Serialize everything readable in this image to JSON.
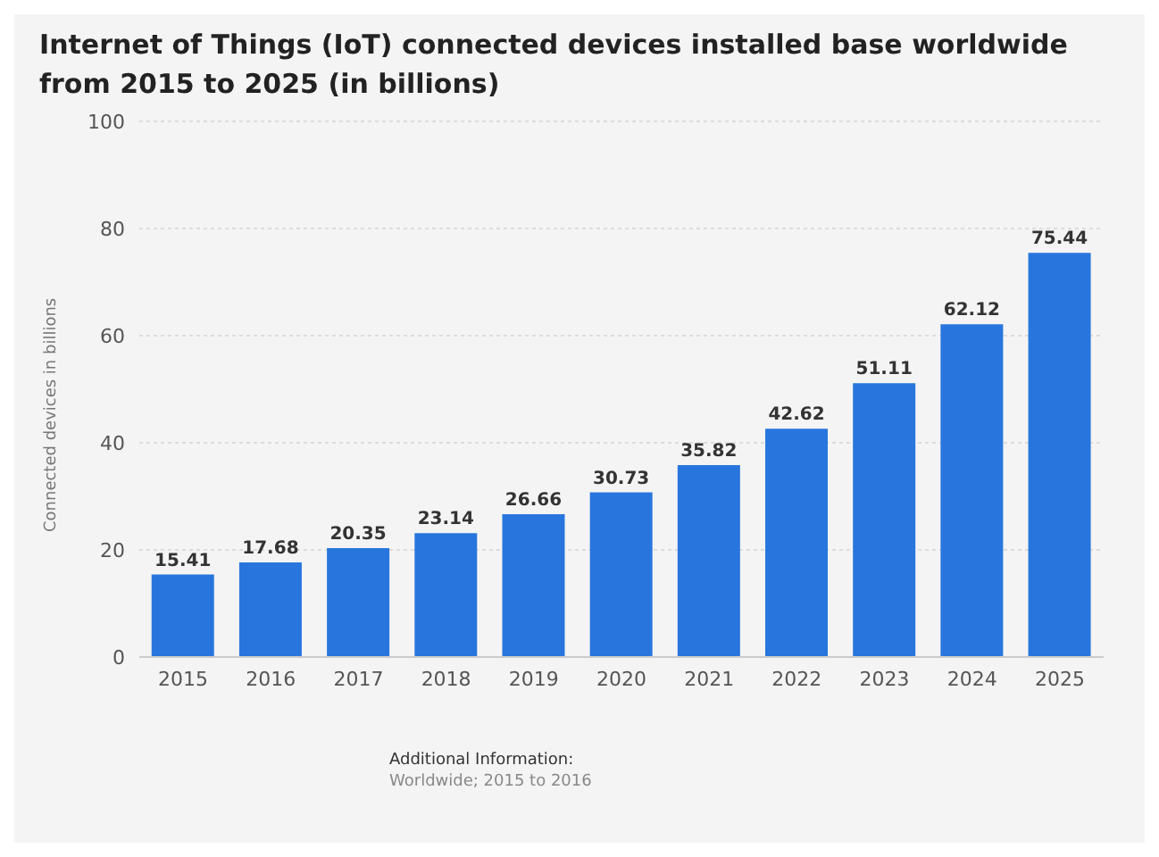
{
  "chart_data": {
    "type": "bar",
    "title": "Internet of Things (IoT) connected devices installed base worldwide from 2015 to 2025 (in billions)",
    "ylabel": "Connected devices in billions",
    "categories": [
      "2015",
      "2016",
      "2017",
      "2018",
      "2019",
      "2020",
      "2021",
      "2022",
      "2023",
      "2024",
      "2025"
    ],
    "values": [
      15.41,
      17.68,
      20.35,
      23.14,
      26.66,
      30.73,
      35.82,
      42.62,
      51.11,
      62.12,
      75.44
    ],
    "color": "#2876dd",
    "ylim": [
      0,
      100
    ],
    "yticks": [
      0,
      20,
      40,
      60,
      80,
      100
    ],
    "grid": "y",
    "data_labels": true,
    "annotations": [
      "Additional Information:",
      "Worldwide; 2015 to 2016"
    ]
  }
}
